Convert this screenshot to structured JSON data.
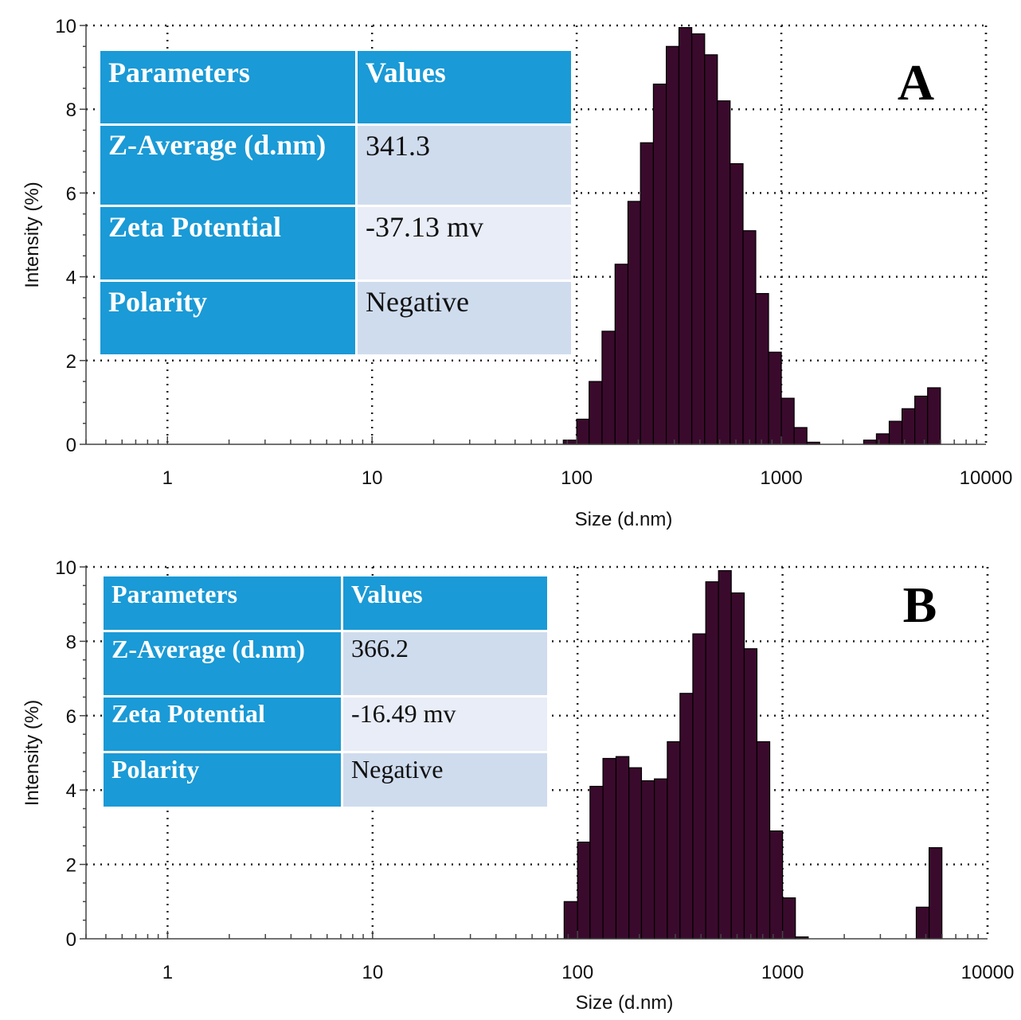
{
  "colors": {
    "bar_fill": "#3a0a2c",
    "bar_stroke": "#000000",
    "table_header": "#1a9ad6",
    "table_value_a": "#cfdcee",
    "table_value_b": "#e8edf7"
  },
  "chart_data": [
    {
      "type": "bar",
      "panel_label": "A",
      "xlabel": "Size (d.nm)",
      "ylabel": "Intensity (%)",
      "xscale": "log",
      "xlim": [
        0.4,
        10000
      ],
      "ylim": [
        0,
        10
      ],
      "x_ticks": [
        "1",
        "10",
        "100",
        "1000",
        "10000"
      ],
      "y_ticks": [
        "0",
        "2",
        "4",
        "6",
        "8",
        "10"
      ],
      "grid": true,
      "bin_edges": [
        86,
        100,
        115,
        133,
        154,
        178,
        205,
        237,
        274,
        316,
        365,
        422,
        487,
        562,
        650,
        750,
        866,
        1000,
        1155,
        1334,
        1540,
        2525,
        2915,
        3367,
        3889,
        4490,
        5186,
        5989
      ],
      "values": [
        0.1,
        0.6,
        1.5,
        2.7,
        4.3,
        5.8,
        7.2,
        8.6,
        9.5,
        9.95,
        9.8,
        9.3,
        8.2,
        6.7,
        5.1,
        3.6,
        2.2,
        1.1,
        0.4,
        0.05,
        0,
        0.1,
        0.25,
        0.55,
        0.85,
        1.15,
        1.35
      ],
      "table": {
        "headers": [
          "Parameters",
          "Values"
        ],
        "rows": [
          {
            "label": "Z-Average (d.nm)",
            "value": "341.3"
          },
          {
            "label": "Zeta Potential",
            "value": "-37.13 mv"
          },
          {
            "label": "Polarity",
            "value": "Negative"
          }
        ]
      }
    },
    {
      "type": "bar",
      "panel_label": "B",
      "xlabel": "Size (d.nm)",
      "ylabel": "Intensity (%)",
      "xscale": "log",
      "xlim": [
        0.4,
        10000
      ],
      "ylim": [
        0,
        10
      ],
      "x_ticks": [
        "1",
        "10",
        "100",
        "1000",
        "10000"
      ],
      "y_ticks": [
        "0",
        "2",
        "4",
        "6",
        "8",
        "10"
      ],
      "grid": true,
      "bin_edges": [
        86,
        100,
        115,
        133,
        154,
        178,
        205,
        237,
        274,
        316,
        365,
        422,
        487,
        562,
        650,
        750,
        866,
        1000,
        1155,
        1334,
        4490,
        5186,
        5989
      ],
      "values": [
        1.0,
        2.6,
        4.1,
        4.85,
        4.9,
        4.6,
        4.25,
        4.3,
        5.3,
        6.6,
        8.2,
        9.6,
        9.9,
        9.3,
        7.8,
        5.3,
        2.9,
        1.1,
        0.05,
        0,
        0.85,
        2.45
      ],
      "table": {
        "headers": [
          "Parameters",
          "Values"
        ],
        "rows": [
          {
            "label": "Z-Average (d.nm)",
            "value": "366.2"
          },
          {
            "label": "Zeta Potential",
            "value": "-16.49 mv"
          },
          {
            "label": "Polarity",
            "value": "Negative"
          }
        ]
      }
    }
  ]
}
